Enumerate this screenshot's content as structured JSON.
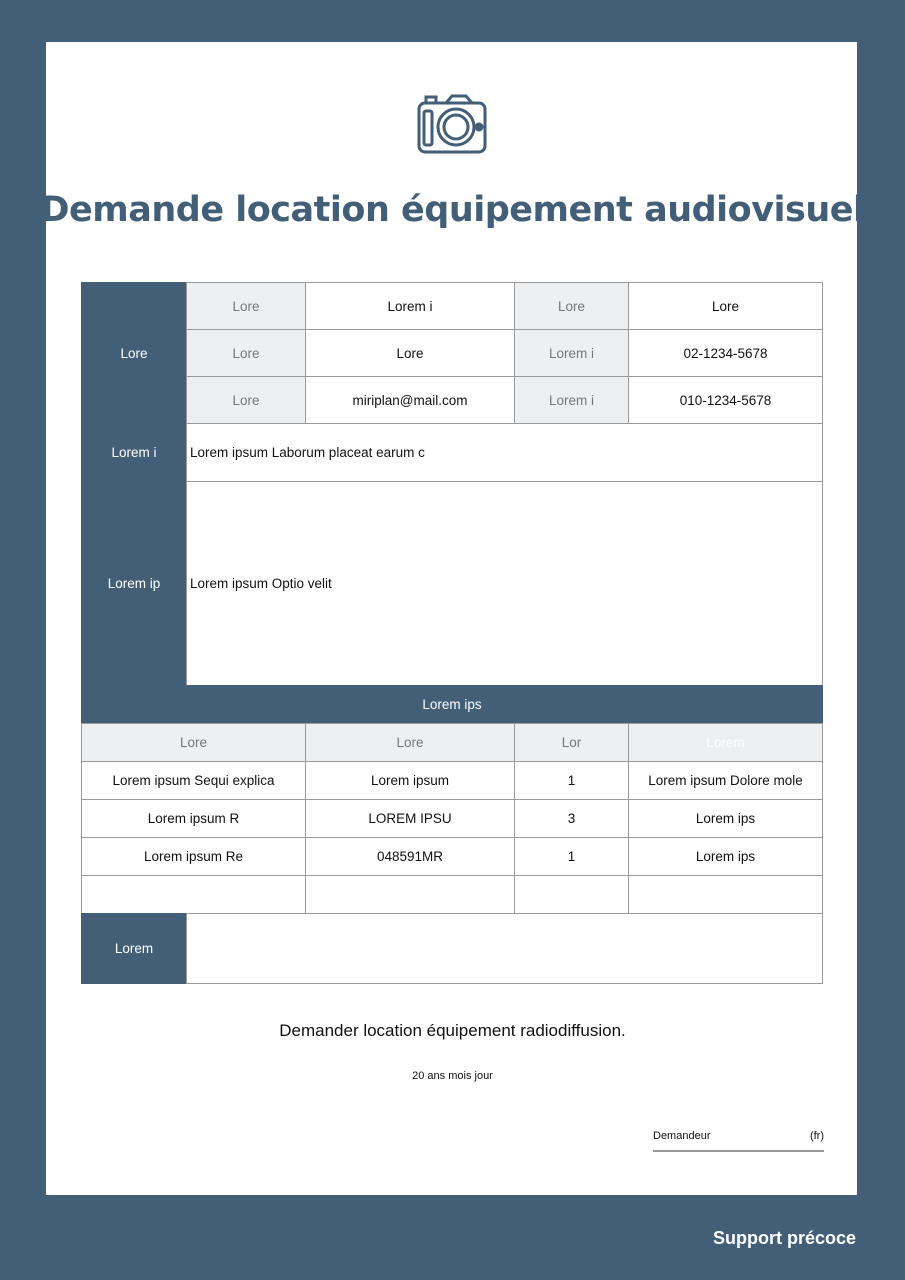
{
  "title": "Demande location équipement audiovisuel",
  "icon": "camera-icon",
  "colors": {
    "primary": "#435f78",
    "label_bg": "#eeeff1"
  },
  "info": {
    "section_label": "Lore",
    "rows": [
      [
        "Lore",
        "Lorem i",
        "Lore",
        "Lore"
      ],
      [
        "Lore",
        "Lore",
        "Lorem i",
        "02-1234-5678"
      ],
      [
        "Lore",
        "miriplan@mail.com",
        "Lorem i",
        "010-1234-5678"
      ]
    ]
  },
  "row2": {
    "label": "Lorem i",
    "value": "Lorem ipsum Laborum placeat earum c"
  },
  "row3": {
    "label": "Lorem ip",
    "value": "Lorem ipsum Optio velit"
  },
  "equipment": {
    "header": "Lorem ips",
    "columns": [
      "Lore",
      "Lore",
      "Lor",
      "Lorem"
    ],
    "rows": [
      [
        "Lorem ipsum Sequi explica",
        "Lorem ipsum",
        "1",
        "Lorem ipsum Dolore mole"
      ],
      [
        "Lorem ipsum R",
        "LOREM IPSU",
        "3",
        "Lorem ips"
      ],
      [
        "Lorem ipsum Re",
        "048591MR",
        "1",
        "Lorem ips"
      ],
      [
        "",
        "",
        "",
        ""
      ]
    ]
  },
  "notes": {
    "label": "Lorem",
    "value": ""
  },
  "footer": {
    "statement": "Demander location équipement radiodiffusion.",
    "date": "20 ans mois jour",
    "signer": "Demandeur",
    "sign_mark": "(fr)"
  },
  "brand": "Support précoce"
}
